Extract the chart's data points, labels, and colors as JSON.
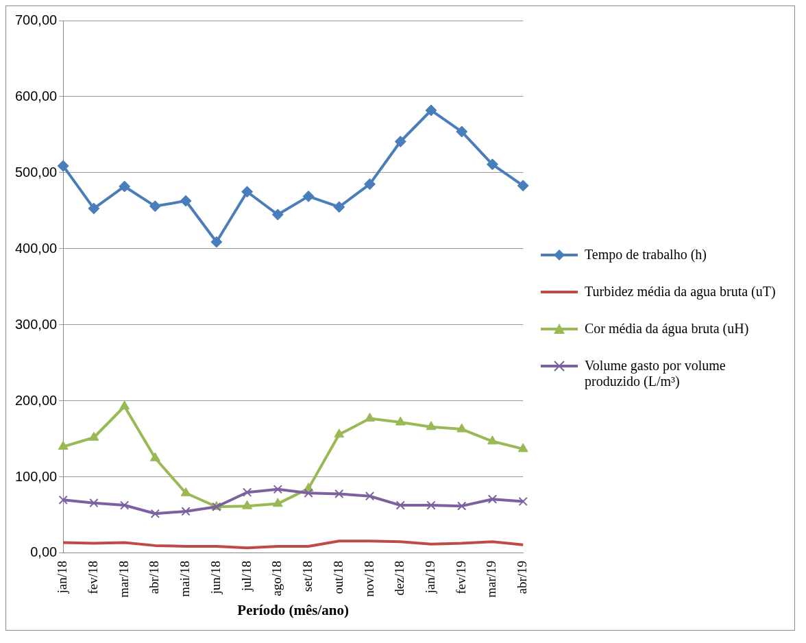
{
  "chart_data": {
    "type": "line",
    "categories": [
      "jan/18",
      "fev/18",
      "mar/18",
      "abr/18",
      "mai/18",
      "jun/18",
      "jul/18",
      "ago/18",
      "set/18",
      "out/18",
      "nov/18",
      "dez/18",
      "jan/19",
      "fev/19",
      "mar/19",
      "abr/19"
    ],
    "xlabel": "Período (mês/ano)",
    "ylim": [
      0,
      700
    ],
    "yticks": [
      {
        "value": 0,
        "label": "0,00"
      },
      {
        "value": 100,
        "label": "100,00"
      },
      {
        "value": 200,
        "label": "200,00"
      },
      {
        "value": 300,
        "label": "300,00"
      },
      {
        "value": 400,
        "label": "400,00"
      },
      {
        "value": 500,
        "label": "500,00"
      },
      {
        "value": 600,
        "label": "600,00"
      },
      {
        "value": 700,
        "label": "700,00"
      }
    ],
    "grid": "y",
    "legend": "right",
    "series": [
      {
        "name": "Tempo de trabalho (h)",
        "color": "#4a7ebb",
        "marker": "diamond",
        "values": [
          509,
          453,
          482,
          456,
          463,
          409,
          475,
          445,
          469,
          455,
          485,
          541,
          582,
          554,
          511,
          483
        ]
      },
      {
        "name": "Turbidez média da agua bruta (uT)",
        "color": "#be4b48",
        "marker": "none",
        "values": [
          14,
          13,
          14,
          10,
          9,
          9,
          7,
          9,
          9,
          16,
          16,
          15,
          12,
          13,
          15,
          11
        ]
      },
      {
        "name": "Cor média da água bruta (uH)",
        "color": "#98b954",
        "marker": "triangle",
        "values": [
          140,
          152,
          193,
          125,
          79,
          61,
          62,
          65,
          85,
          156,
          177,
          172,
          166,
          163,
          147,
          137
        ]
      },
      {
        "name": "Volume gasto por volume produzido (L/m³)",
        "color": "#7d60a0",
        "marker": "cross",
        "values": [
          70,
          66,
          63,
          52,
          55,
          61,
          80,
          84,
          79,
          78,
          75,
          63,
          63,
          62,
          71,
          68
        ]
      }
    ]
  }
}
